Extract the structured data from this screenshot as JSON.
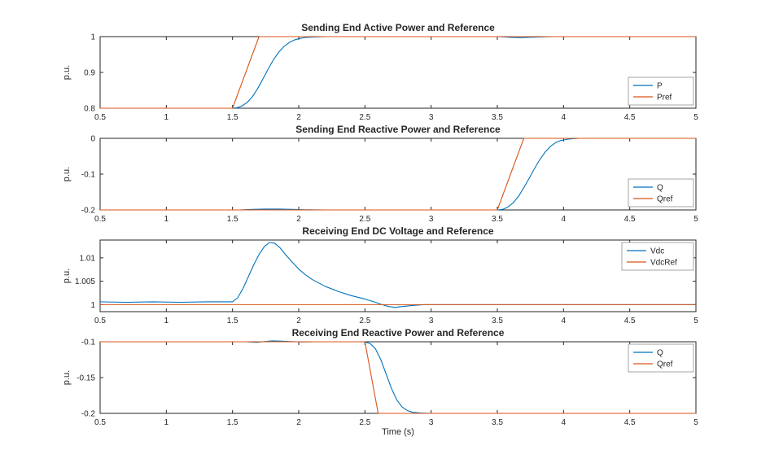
{
  "figure": {
    "background": "#ffffff",
    "axis_color": "#262626",
    "legend_border_color": "#a6a6a6",
    "xlabel": "Time (s)"
  },
  "chart_data": [
    {
      "type": "line",
      "title": "Sending End Active Power and Reference",
      "ylabel": "p.u.",
      "xlim": [
        0.5,
        5
      ],
      "ylim": [
        0.8,
        1.0
      ],
      "xticks": [
        0.5,
        1,
        1.5,
        2,
        2.5,
        3,
        3.5,
        4,
        4.5,
        5
      ],
      "xtick_labels": [
        "0.5",
        "1",
        "1.5",
        "2",
        "2.5",
        "3",
        "3.5",
        "4",
        "4.5",
        "5"
      ],
      "yticks": [
        0.8,
        0.9,
        1
      ],
      "ytick_labels": [
        "0.8",
        "0.9",
        "1"
      ],
      "grid": false,
      "legend_location": "southeast",
      "series": [
        {
          "name": "P",
          "color": "#0072BD",
          "points": [
            [
              0.5,
              0.8
            ],
            [
              1.49,
              0.8
            ],
            [
              1.53,
              0.801
            ],
            [
              1.57,
              0.806
            ],
            [
              1.61,
              0.816
            ],
            [
              1.65,
              0.832
            ],
            [
              1.69,
              0.855
            ],
            [
              1.73,
              0.882
            ],
            [
              1.77,
              0.91
            ],
            [
              1.81,
              0.936
            ],
            [
              1.85,
              0.957
            ],
            [
              1.89,
              0.973
            ],
            [
              1.93,
              0.984
            ],
            [
              1.97,
              0.991
            ],
            [
              2.01,
              0.995
            ],
            [
              2.06,
              0.998
            ],
            [
              2.12,
              0.999
            ],
            [
              2.2,
              1.0
            ],
            [
              3.5,
              1.0
            ],
            [
              3.56,
              0.999
            ],
            [
              3.62,
              0.9975
            ],
            [
              3.68,
              0.997
            ],
            [
              3.74,
              0.998
            ],
            [
              3.82,
              0.999
            ],
            [
              3.92,
              1.0
            ],
            [
              5,
              1.0
            ]
          ]
        },
        {
          "name": "Pref",
          "color": "#D95319",
          "points": [
            [
              0.5,
              0.8
            ],
            [
              1.5,
              0.8
            ],
            [
              1.7,
              1.0
            ],
            [
              5,
              1.0
            ]
          ]
        }
      ]
    },
    {
      "type": "line",
      "title": "Sending End Reactive Power and Reference",
      "ylabel": "p.u.",
      "xlim": [
        0.5,
        5
      ],
      "ylim": [
        -0.2,
        0
      ],
      "xticks": [
        0.5,
        1,
        1.5,
        2,
        2.5,
        3,
        3.5,
        4,
        4.5,
        5
      ],
      "xtick_labels": [
        "0.5",
        "1",
        "1.5",
        "2",
        "2.5",
        "3",
        "3.5",
        "4",
        "4.5",
        "5"
      ],
      "yticks": [
        -0.2,
        -0.1,
        0
      ],
      "ytick_labels": [
        "-0.2",
        "-0.1",
        "0"
      ],
      "grid": false,
      "legend_location": "southeast",
      "series": [
        {
          "name": "Q",
          "color": "#0072BD",
          "points": [
            [
              0.5,
              -0.2
            ],
            [
              1.55,
              -0.2
            ],
            [
              1.65,
              -0.1985
            ],
            [
              1.75,
              -0.1975
            ],
            [
              1.85,
              -0.1975
            ],
            [
              1.95,
              -0.1985
            ],
            [
              2.05,
              -0.1995
            ],
            [
              2.2,
              -0.2
            ],
            [
              3.5,
              -0.2
            ],
            [
              3.54,
              -0.1985
            ],
            [
              3.58,
              -0.192
            ],
            [
              3.62,
              -0.18
            ],
            [
              3.66,
              -0.162
            ],
            [
              3.7,
              -0.138
            ],
            [
              3.74,
              -0.112
            ],
            [
              3.78,
              -0.085
            ],
            [
              3.82,
              -0.06
            ],
            [
              3.86,
              -0.039
            ],
            [
              3.9,
              -0.023
            ],
            [
              3.94,
              -0.012
            ],
            [
              3.98,
              -0.006
            ],
            [
              4.04,
              -0.002
            ],
            [
              4.12,
              0
            ],
            [
              5,
              0
            ]
          ]
        },
        {
          "name": "Qref",
          "color": "#D95319",
          "points": [
            [
              0.5,
              -0.2
            ],
            [
              3.5,
              -0.2
            ],
            [
              3.7,
              0
            ],
            [
              5,
              0
            ]
          ]
        }
      ]
    },
    {
      "type": "line",
      "title": "Receiving End DC Voltage and Reference",
      "ylabel": "p.u.",
      "xlim": [
        0.5,
        5
      ],
      "ylim": [
        0.9985,
        1.0138
      ],
      "xticks": [
        0.5,
        1,
        1.5,
        2,
        2.5,
        3,
        3.5,
        4,
        4.5,
        5
      ],
      "xtick_labels": [
        "0.5",
        "1",
        "1.5",
        "2",
        "2.5",
        "3",
        "3.5",
        "4",
        "4.5",
        "5"
      ],
      "yticks": [
        1,
        1.005,
        1.01
      ],
      "ytick_labels": [
        "1",
        "1.005",
        "1.01"
      ],
      "grid": false,
      "legend_location": "northeast",
      "series": [
        {
          "name": "Vdc",
          "color": "#0072BD",
          "points": [
            [
              0.5,
              1.0006
            ],
            [
              0.7,
              1.0005
            ],
            [
              0.9,
              1.0006
            ],
            [
              1.1,
              1.0005
            ],
            [
              1.3,
              1.0006
            ],
            [
              1.5,
              1.0006
            ],
            [
              1.54,
              1.0015
            ],
            [
              1.58,
              1.0035
            ],
            [
              1.62,
              1.006
            ],
            [
              1.66,
              1.0085
            ],
            [
              1.7,
              1.0107
            ],
            [
              1.74,
              1.0124
            ],
            [
              1.78,
              1.0133
            ],
            [
              1.82,
              1.0131
            ],
            [
              1.86,
              1.0121
            ],
            [
              1.9,
              1.0107
            ],
            [
              1.95,
              1.0091
            ],
            [
              2.0,
              1.0076
            ],
            [
              2.05,
              1.0064
            ],
            [
              2.1,
              1.0054
            ],
            [
              2.2,
              1.0039
            ],
            [
              2.3,
              1.0028
            ],
            [
              2.4,
              1.0019
            ],
            [
              2.5,
              1.0012
            ],
            [
              2.58,
              1.0005
            ],
            [
              2.63,
              1.0
            ],
            [
              2.68,
              0.9996
            ],
            [
              2.73,
              0.9994
            ],
            [
              2.78,
              0.9996
            ],
            [
              2.85,
              0.9998
            ],
            [
              2.95,
              1.0
            ],
            [
              3.2,
              1.0
            ],
            [
              5,
              1.0
            ]
          ]
        },
        {
          "name": "VdcRef",
          "color": "#D95319",
          "points": [
            [
              0.5,
              1.0
            ],
            [
              5,
              1.0
            ]
          ]
        }
      ]
    },
    {
      "type": "line",
      "title": "Receiving End Reactive Power and Reference",
      "ylabel": "p.u.",
      "xlim": [
        0.5,
        5
      ],
      "ylim": [
        -0.2,
        -0.1
      ],
      "xticks": [
        0.5,
        1,
        1.5,
        2,
        2.5,
        3,
        3.5,
        4,
        4.5,
        5
      ],
      "xtick_labels": [
        "0.5",
        "1",
        "1.5",
        "2",
        "2.5",
        "3",
        "3.5",
        "4",
        "4.5",
        "5"
      ],
      "yticks": [
        -0.2,
        -0.15,
        -0.1
      ],
      "ytick_labels": [
        "-0.2",
        "-0.15",
        "-0.1"
      ],
      "grid": false,
      "legend_location": "northeast",
      "series": [
        {
          "name": "Q",
          "color": "#0072BD",
          "points": [
            [
              0.5,
              -0.1
            ],
            [
              1.6,
              -0.1
            ],
            [
              1.68,
              -0.1008
            ],
            [
              1.74,
              -0.0998
            ],
            [
              1.8,
              -0.0988
            ],
            [
              1.86,
              -0.099
            ],
            [
              1.94,
              -0.0997
            ],
            [
              2.02,
              -0.1002
            ],
            [
              2.12,
              -0.1
            ],
            [
              2.46,
              -0.1
            ],
            [
              2.5,
              -0.1003
            ],
            [
              2.54,
              -0.1025
            ],
            [
              2.58,
              -0.11
            ],
            [
              2.62,
              -0.125
            ],
            [
              2.66,
              -0.145
            ],
            [
              2.7,
              -0.165
            ],
            [
              2.74,
              -0.181
            ],
            [
              2.78,
              -0.191
            ],
            [
              2.82,
              -0.196
            ],
            [
              2.86,
              -0.1985
            ],
            [
              2.92,
              -0.1995
            ],
            [
              3.0,
              -0.2
            ],
            [
              5,
              -0.2
            ]
          ]
        },
        {
          "name": "Qref",
          "color": "#D95319",
          "points": [
            [
              0.5,
              -0.1
            ],
            [
              2.5,
              -0.1
            ],
            [
              2.6,
              -0.2
            ],
            [
              5,
              -0.2
            ]
          ]
        }
      ]
    }
  ]
}
